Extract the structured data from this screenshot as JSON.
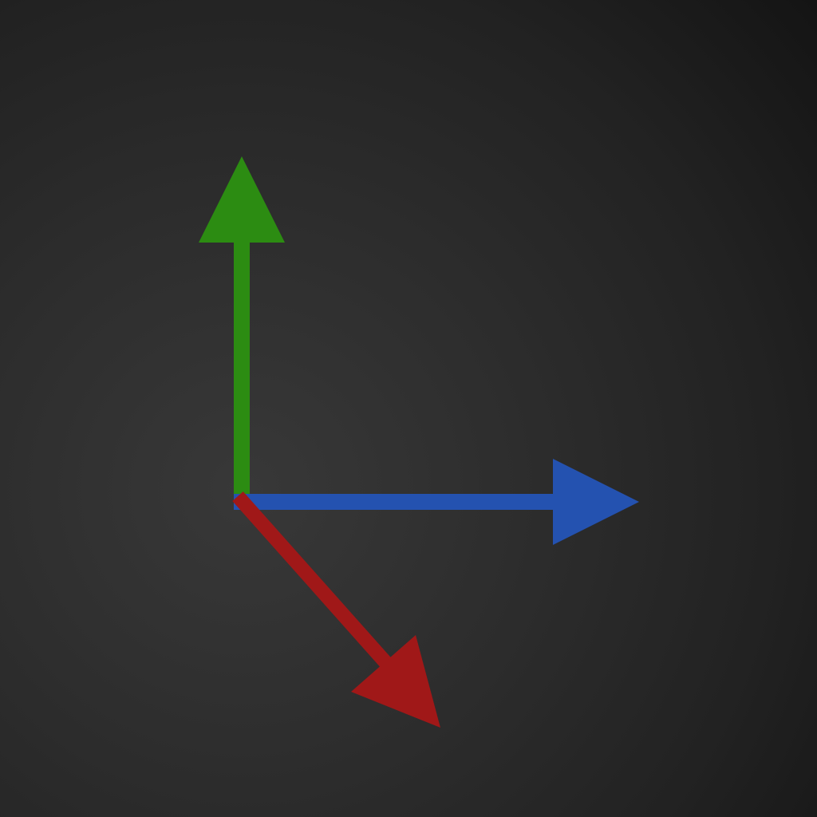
{
  "diagram": {
    "type": "axis-gizmo",
    "background": "#2c2c2c",
    "axes": [
      {
        "id": "y",
        "direction": "up",
        "color": "#2c8c12"
      },
      {
        "id": "z",
        "direction": "right",
        "color": "#2452b0"
      },
      {
        "id": "x",
        "direction": "down-right",
        "color": "#a01818"
      }
    ]
  }
}
